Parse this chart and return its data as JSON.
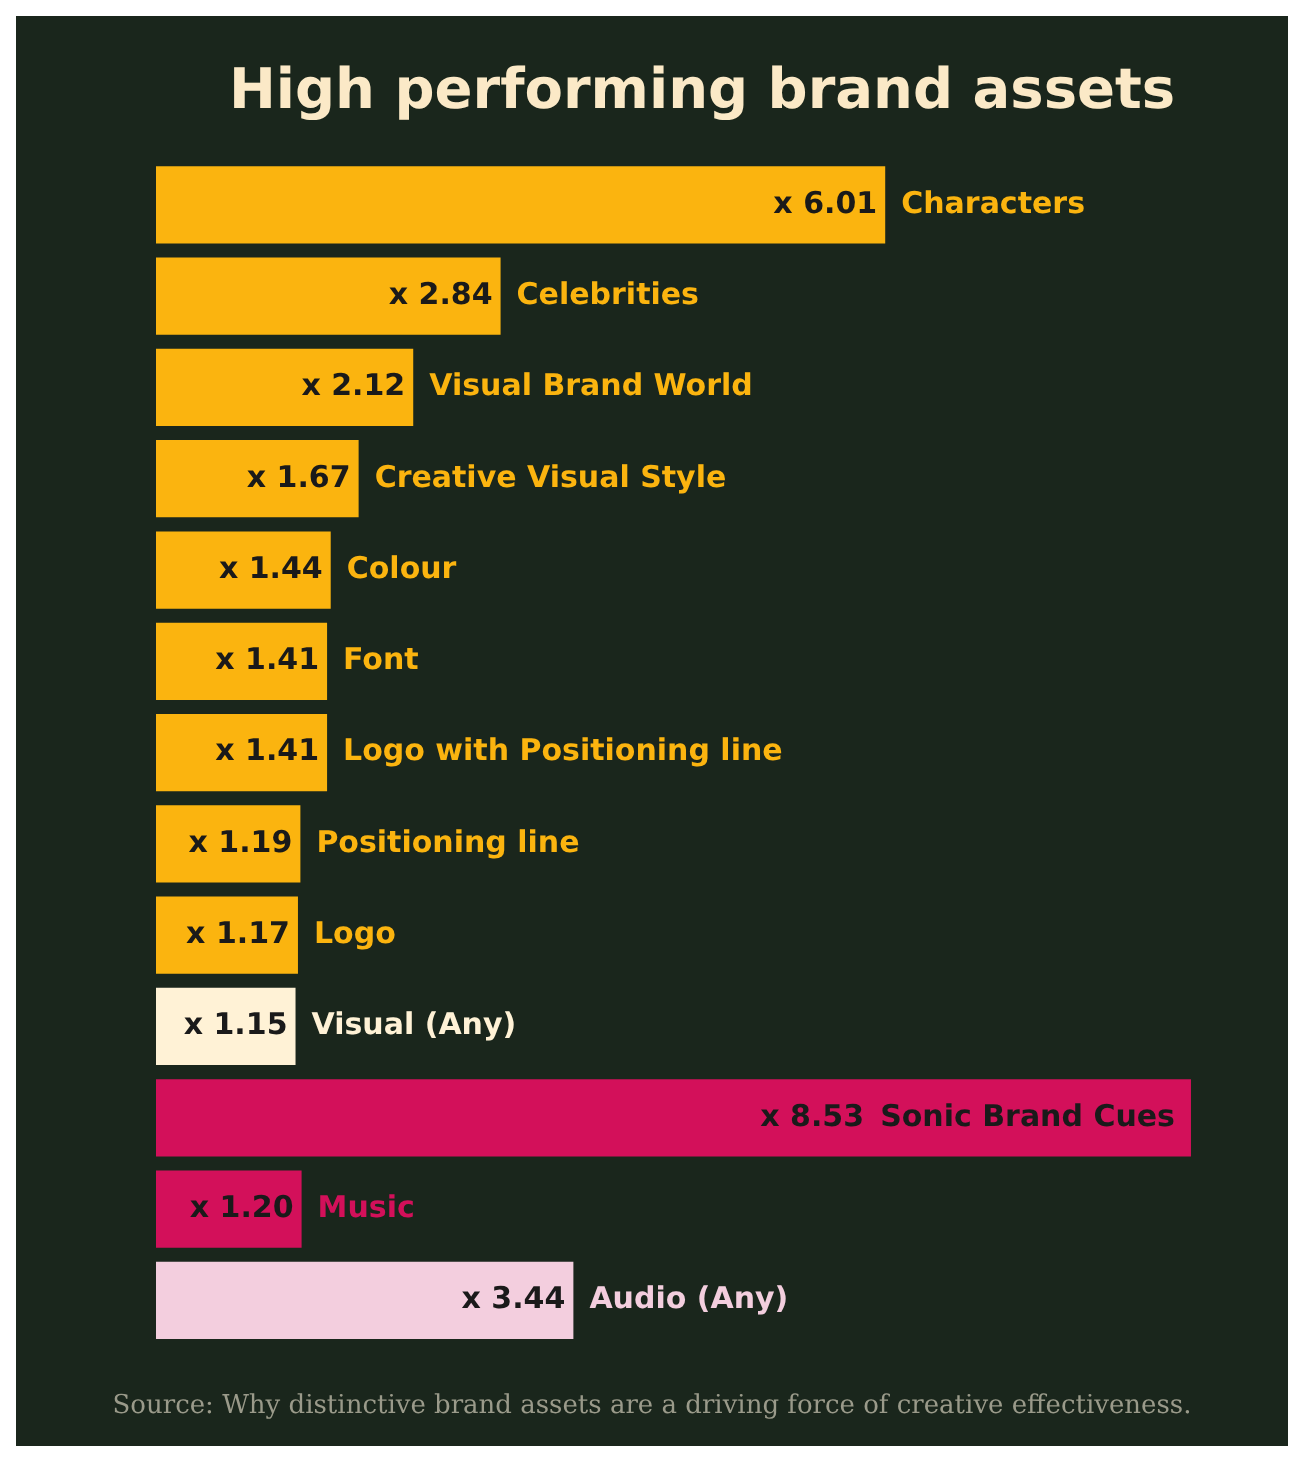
{
  "chart_data": {
    "type": "bar",
    "orientation": "horizontal",
    "title": "High performing brand assets",
    "categories": [
      "Characters",
      "Celebrities",
      "Visual Brand World",
      "Creative Visual Style",
      "Colour",
      "Font",
      "Logo with Positioning line",
      "Positioning line",
      "Logo",
      "Visual (Any)",
      "Sonic Brand Cues",
      "Music",
      "Audio (Any)"
    ],
    "values": [
      6.01,
      2.84,
      2.12,
      1.67,
      1.44,
      1.41,
      1.41,
      1.19,
      1.17,
      1.15,
      8.53,
      1.2,
      3.44
    ],
    "value_labels": [
      "x 6.01",
      "x 2.84",
      "x 2.12",
      "x 1.67",
      "x 1.44",
      "x 1.41",
      "x 1.41",
      "x 1.19",
      "x 1.17",
      "x 1.15",
      "x 8.53",
      "x 1.20",
      "x 3.44"
    ],
    "colors": [
      "#fbb40f",
      "#fbb40f",
      "#fbb40f",
      "#fbb40f",
      "#fbb40f",
      "#fbb40f",
      "#fbb40f",
      "#fbb40f",
      "#fbb40f",
      "#fff2d6",
      "#d3105a",
      "#d3105a",
      "#f3cede"
    ],
    "legend": false,
    "annotations": [
      "Source: Why distinctive brand assets are a driving force of creative effectiveness."
    ]
  }
}
